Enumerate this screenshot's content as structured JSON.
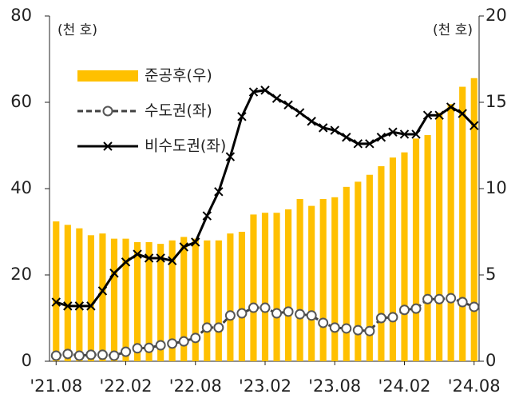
{
  "chart_data": {
    "type": "bar_line",
    "y_label": "(천 호)",
    "y2_label": "(천 호)",
    "categories": [
      "'21.08",
      null,
      null,
      null,
      null,
      null,
      "'22.02",
      null,
      null,
      null,
      null,
      null,
      "'22.08",
      null,
      null,
      null,
      null,
      null,
      "'23.02",
      null,
      null,
      null,
      null,
      null,
      "'23.08",
      null,
      null,
      null,
      null,
      null,
      "'24.02",
      null,
      null,
      null,
      null,
      null,
      "'24.08"
    ],
    "series": [
      {
        "name": "준공후(우)",
        "type": "bar",
        "axis": "y2",
        "color": "#ffc000",
        "values": [
          8.1,
          7.9,
          7.7,
          7.3,
          7.4,
          7.1,
          7.1,
          6.9,
          6.9,
          6.8,
          7.0,
          7.2,
          7.1,
          7.0,
          7.0,
          7.4,
          7.5,
          8.5,
          8.6,
          8.6,
          8.8,
          9.4,
          9.0,
          9.4,
          9.5,
          10.1,
          10.4,
          10.8,
          11.3,
          11.8,
          12.1,
          12.9,
          13.1,
          14.4,
          14.9,
          15.9,
          16.4
        ]
      },
      {
        "name": "수도권(좌)",
        "type": "line",
        "axis": "y",
        "color": "#404040",
        "dash": true,
        "marker": "circle",
        "values": [
          1.3,
          1.7,
          1.3,
          1.5,
          1.5,
          1.3,
          2.2,
          3.0,
          3.1,
          3.7,
          4.1,
          4.6,
          5.4,
          7.8,
          7.8,
          10.6,
          11.1,
          12.4,
          12.4,
          11.1,
          11.5,
          10.9,
          10.6,
          8.9,
          7.8,
          7.6,
          7.2,
          7.0,
          10.0,
          10.2,
          11.9,
          12.2,
          14.4,
          14.4,
          14.6,
          13.7,
          12.6
        ]
      },
      {
        "name": "비수도권(좌)",
        "type": "line",
        "axis": "y",
        "color": "#000000",
        "dash": false,
        "marker": "x",
        "values": [
          13.7,
          12.8,
          12.8,
          12.8,
          16.3,
          20.4,
          23.0,
          24.8,
          23.9,
          23.9,
          23.3,
          26.5,
          27.6,
          33.7,
          39.3,
          47.4,
          56.7,
          62.4,
          62.8,
          60.9,
          59.4,
          57.6,
          55.6,
          54.1,
          53.5,
          51.9,
          50.4,
          50.4,
          51.9,
          53.1,
          52.6,
          52.6,
          57.0,
          57.0,
          58.9,
          57.4,
          54.6
        ]
      }
    ],
    "ylim": [
      0,
      80
    ],
    "yticks": [
      0,
      20,
      40,
      60,
      80
    ],
    "y2lim": [
      0,
      20
    ],
    "y2ticks": [
      0,
      5,
      10,
      15,
      20
    ]
  }
}
